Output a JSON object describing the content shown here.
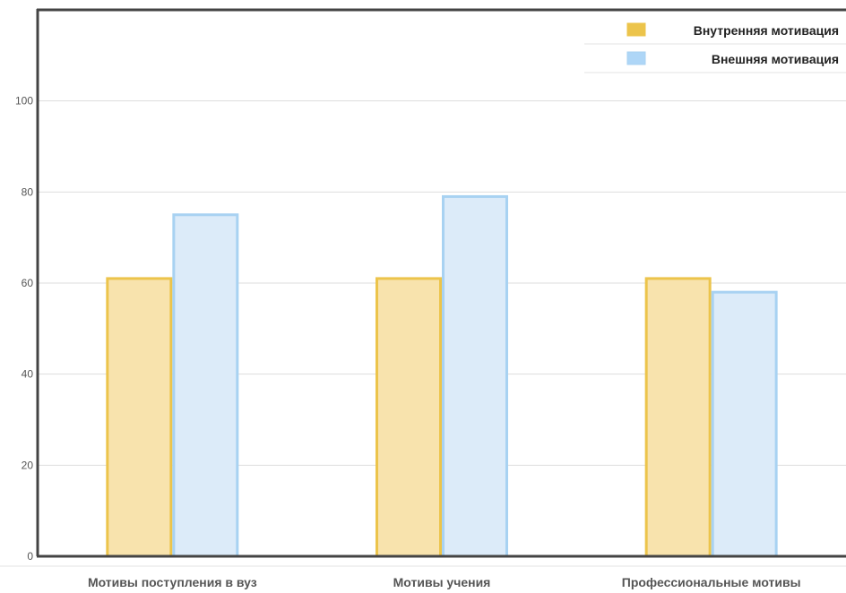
{
  "chart_data": {
    "type": "bar",
    "categories": [
      "Мотивы поступления в вуз",
      "Мотивы учения",
      "Профессиональные мотивы"
    ],
    "series": [
      {
        "name": "Внутренняя мотивация",
        "values": [
          61,
          61,
          61
        ],
        "fill": "#f8e3ad",
        "stroke": "#ecc44b"
      },
      {
        "name": "Внешняя мотивация",
        "values": [
          75,
          79,
          58
        ],
        "fill": "#dcebf9",
        "stroke": "#a8d2f2"
      }
    ],
    "yticks": [
      0,
      20,
      40,
      60,
      80,
      100
    ],
    "ylim": [
      0,
      120
    ],
    "grid": true,
    "legend_position": "top-right",
    "title": "",
    "xlabel": "",
    "ylabel": ""
  }
}
